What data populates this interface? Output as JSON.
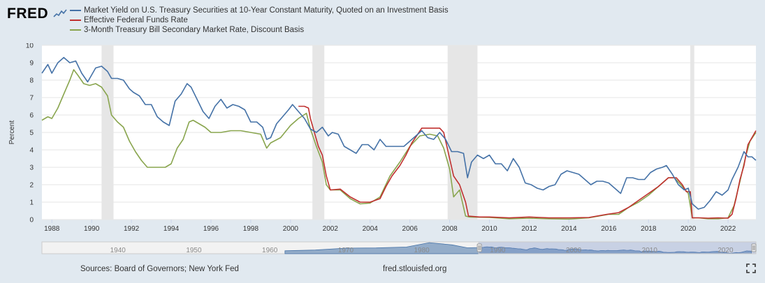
{
  "app": {
    "logo_text": "FRED"
  },
  "footer": {
    "sources": "Sources: Board of Governors; New York Fed",
    "url": "fred.stlouisfed.org"
  },
  "colors": {
    "series_10y": "#4572a7",
    "series_fedfunds": "#c0302f",
    "series_3m": "#89a54e",
    "recession": "#e6e6e6",
    "background": "#e1e9f0"
  },
  "chart_data": {
    "type": "line",
    "xlabel": "",
    "ylabel": "Percent",
    "xlim": [
      1987.5,
      2023.4
    ],
    "ylim": [
      0,
      10
    ],
    "yticks": [
      "0",
      "1",
      "2",
      "3",
      "4",
      "5",
      "6",
      "7",
      "8",
      "9",
      "10"
    ],
    "xticks": [
      "1988",
      "1990",
      "1992",
      "1994",
      "1996",
      "1998",
      "2000",
      "2002",
      "2004",
      "2006",
      "2008",
      "2010",
      "2012",
      "2014",
      "2016",
      "2018",
      "2020",
      "2022"
    ],
    "legend_position": "top-left",
    "grid": true,
    "recessions": [
      [
        1990.5,
        1991.1
      ],
      [
        2001.1,
        2001.7
      ],
      [
        2007.9,
        2009.4
      ],
      [
        2020.1,
        2020.3
      ]
    ],
    "series": [
      {
        "name": "Market Yield on U.S. Treasury Securities at 10-Year Constant Maturity, Quoted on an Investment Basis",
        "color": "#4572a7",
        "x": [
          1987.5,
          1987.8,
          1988.0,
          1988.3,
          1988.6,
          1988.9,
          1989.2,
          1989.5,
          1989.8,
          1990.0,
          1990.2,
          1990.5,
          1990.8,
          1991.0,
          1991.3,
          1991.6,
          1991.9,
          1992.1,
          1992.4,
          1992.7,
          1993.0,
          1993.3,
          1993.6,
          1993.9,
          1994.2,
          1994.5,
          1994.8,
          1995.0,
          1995.3,
          1995.6,
          1995.9,
          1996.2,
          1996.5,
          1996.8,
          1997.1,
          1997.4,
          1997.7,
          1998.0,
          1998.3,
          1998.6,
          1998.8,
          1999.0,
          1999.3,
          1999.6,
          1999.9,
          2000.1,
          2000.4,
          2000.7,
          2001.0,
          2001.3,
          2001.6,
          2001.9,
          2002.1,
          2002.4,
          2002.7,
          2003.0,
          2003.3,
          2003.6,
          2003.9,
          2004.2,
          2004.5,
          2004.8,
          2005.1,
          2005.4,
          2005.7,
          2006.0,
          2006.3,
          2006.6,
          2006.9,
          2007.2,
          2007.5,
          2007.8,
          2008.1,
          2008.4,
          2008.7,
          2008.9,
          2009.1,
          2009.4,
          2009.7,
          2010.0,
          2010.3,
          2010.6,
          2010.9,
          2011.2,
          2011.5,
          2011.8,
          2012.1,
          2012.4,
          2012.7,
          2013.0,
          2013.3,
          2013.6,
          2013.9,
          2014.2,
          2014.5,
          2014.8,
          2015.1,
          2015.4,
          2015.7,
          2016.0,
          2016.3,
          2016.6,
          2016.9,
          2017.2,
          2017.5,
          2017.8,
          2018.1,
          2018.4,
          2018.7,
          2018.9,
          2019.2,
          2019.5,
          2019.8,
          2020.0,
          2020.2,
          2020.5,
          2020.8,
          2021.1,
          2021.4,
          2021.7,
          2022.0,
          2022.2,
          2022.5,
          2022.8,
          2023.0,
          2023.2,
          2023.4
        ],
        "y": [
          8.4,
          8.9,
          8.4,
          9.0,
          9.3,
          9.0,
          9.1,
          8.4,
          7.9,
          8.3,
          8.7,
          8.8,
          8.5,
          8.1,
          8.1,
          8.0,
          7.5,
          7.3,
          7.1,
          6.6,
          6.6,
          5.9,
          5.6,
          5.4,
          6.8,
          7.2,
          7.8,
          7.6,
          6.9,
          6.2,
          5.8,
          6.5,
          6.9,
          6.4,
          6.6,
          6.5,
          6.3,
          5.6,
          5.6,
          5.3,
          4.6,
          4.7,
          5.5,
          5.9,
          6.3,
          6.6,
          6.2,
          5.8,
          5.2,
          5.0,
          5.3,
          4.8,
          5.0,
          4.9,
          4.2,
          4.0,
          3.8,
          4.3,
          4.3,
          4.0,
          4.6,
          4.2,
          4.2,
          4.2,
          4.2,
          4.5,
          4.8,
          5.1,
          4.7,
          4.6,
          5.0,
          4.6,
          3.9,
          3.9,
          3.8,
          2.4,
          3.3,
          3.7,
          3.5,
          3.7,
          3.2,
          3.2,
          2.8,
          3.5,
          3.0,
          2.1,
          2.0,
          1.8,
          1.7,
          1.9,
          2.0,
          2.6,
          2.8,
          2.7,
          2.6,
          2.3,
          2.0,
          2.2,
          2.2,
          2.1,
          1.8,
          1.5,
          2.4,
          2.4,
          2.3,
          2.3,
          2.7,
          2.9,
          3.0,
          3.1,
          2.6,
          2.0,
          1.7,
          1.8,
          0.9,
          0.6,
          0.7,
          1.1,
          1.6,
          1.4,
          1.7,
          2.3,
          3.0,
          3.9,
          3.6,
          3.6,
          3.4
        ]
      },
      {
        "name": "Effective Federal Funds Rate",
        "color": "#c0302f",
        "x": [
          2000.4,
          2000.7,
          2000.9,
          2001.0,
          2001.2,
          2001.4,
          2001.6,
          2001.8,
          2002.0,
          2002.5,
          2003.0,
          2003.5,
          2004.0,
          2004.5,
          2004.8,
          2005.1,
          2005.5,
          2005.8,
          2006.1,
          2006.4,
          2006.6,
          2007.0,
          2007.5,
          2007.7,
          2008.0,
          2008.2,
          2008.5,
          2008.8,
          2008.95,
          2009.5,
          2010.0,
          2011.0,
          2012.0,
          2013.0,
          2014.0,
          2015.0,
          2015.9,
          2016.5,
          2017.0,
          2017.5,
          2018.0,
          2018.5,
          2019.0,
          2019.4,
          2019.7,
          2019.9,
          2020.1,
          2020.2,
          2020.6,
          2021.0,
          2021.5,
          2022.0,
          2022.2,
          2022.4,
          2022.6,
          2022.8,
          2023.0,
          2023.4
        ],
        "y": [
          6.5,
          6.5,
          6.4,
          5.8,
          5.0,
          4.2,
          3.7,
          2.5,
          1.7,
          1.75,
          1.3,
          1.0,
          1.0,
          1.2,
          1.9,
          2.5,
          3.1,
          3.7,
          4.4,
          4.9,
          5.25,
          5.25,
          5.25,
          5.0,
          3.5,
          2.5,
          2.0,
          1.0,
          0.2,
          0.15,
          0.15,
          0.1,
          0.15,
          0.1,
          0.1,
          0.12,
          0.3,
          0.4,
          0.7,
          1.1,
          1.5,
          1.9,
          2.4,
          2.4,
          2.0,
          1.6,
          1.6,
          0.1,
          0.1,
          0.08,
          0.1,
          0.08,
          0.3,
          1.2,
          2.3,
          3.1,
          4.3,
          5.1
        ]
      },
      {
        "name": "3-Month Treasury Bill Secondary Market Rate, Discount Basis",
        "color": "#89a54e",
        "x": [
          1987.5,
          1987.8,
          1988.0,
          1988.3,
          1988.6,
          1988.9,
          1989.1,
          1989.3,
          1989.6,
          1989.9,
          1990.2,
          1990.5,
          1990.8,
          1991.0,
          1991.3,
          1991.6,
          1991.9,
          1992.2,
          1992.5,
          1992.8,
          1993.1,
          1993.4,
          1993.7,
          1994.0,
          1994.3,
          1994.6,
          1994.9,
          1995.1,
          1995.4,
          1995.7,
          1996.0,
          1996.5,
          1997.0,
          1997.5,
          1998.0,
          1998.5,
          1998.8,
          1999.0,
          1999.5,
          2000.0,
          2000.4,
          2000.8,
          2001.0,
          2001.3,
          2001.6,
          2001.8,
          2002.0,
          2002.5,
          2003.0,
          2003.5,
          2004.0,
          2004.5,
          2005.0,
          2005.5,
          2006.0,
          2006.5,
          2007.0,
          2007.4,
          2007.7,
          2008.0,
          2008.2,
          2008.5,
          2008.8,
          2009.0,
          2010.0,
          2011.0,
          2012.0,
          2013.0,
          2014.0,
          2015.0,
          2016.0,
          2016.5,
          2017.0,
          2017.5,
          2018.0,
          2018.5,
          2019.0,
          2019.3,
          2019.7,
          2020.0,
          2020.2,
          2020.5,
          2021.0,
          2021.5,
          2022.0,
          2022.3,
          2022.6,
          2022.9,
          2023.1,
          2023.4
        ],
        "y": [
          5.7,
          5.9,
          5.8,
          6.4,
          7.2,
          8.0,
          8.6,
          8.3,
          7.8,
          7.7,
          7.8,
          7.6,
          7.1,
          6.0,
          5.6,
          5.3,
          4.5,
          3.9,
          3.4,
          3.0,
          3.0,
          3.0,
          3.0,
          3.2,
          4.1,
          4.6,
          5.6,
          5.7,
          5.5,
          5.3,
          5.0,
          5.0,
          5.1,
          5.1,
          5.0,
          4.9,
          4.1,
          4.4,
          4.7,
          5.4,
          5.8,
          6.1,
          5.2,
          4.2,
          3.3,
          2.0,
          1.7,
          1.7,
          1.2,
          0.9,
          0.95,
          1.3,
          2.5,
          3.3,
          4.2,
          4.8,
          4.9,
          4.8,
          4.1,
          2.9,
          1.3,
          1.7,
          0.2,
          0.15,
          0.12,
          0.05,
          0.08,
          0.05,
          0.03,
          0.1,
          0.3,
          0.3,
          0.7,
          1.0,
          1.4,
          1.9,
          2.4,
          2.4,
          1.9,
          1.5,
          0.1,
          0.1,
          0.05,
          0.05,
          0.1,
          0.8,
          2.2,
          3.7,
          4.5,
          5.0
        ]
      }
    ]
  },
  "navigator": {
    "ticks": [
      "1940",
      "1950",
      "1960",
      "1970",
      "1980",
      "1990",
      "2000",
      "2010",
      "2020"
    ]
  }
}
